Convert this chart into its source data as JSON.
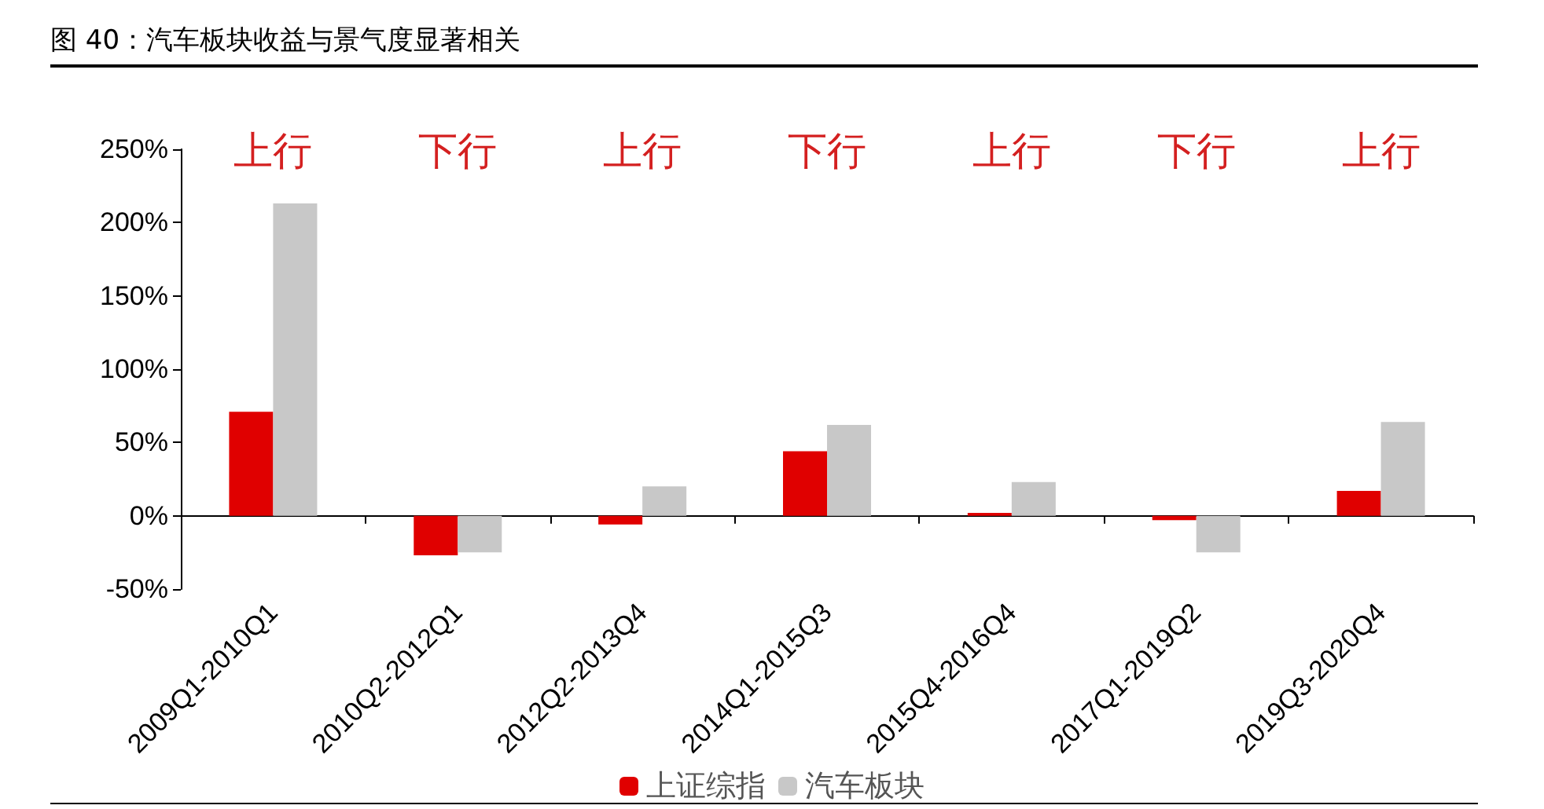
{
  "chart_data": {
    "type": "bar",
    "title": "图 40：汽车板块收益与景气度显著相关",
    "categories": [
      "2009Q1-2010Q1",
      "2010Q2-2012Q1",
      "2012Q2-2013Q4",
      "2014Q1-2015Q3",
      "2015Q4-2016Q4",
      "2017Q1-2019Q2",
      "2019Q3-2020Q4"
    ],
    "series": [
      {
        "name": "上证综指",
        "color": "#e00000",
        "values": [
          71,
          -27,
          -6,
          44,
          2,
          -3,
          17
        ]
      },
      {
        "name": "汽车板块",
        "color": "#c8c8c8",
        "values": [
          213,
          -25,
          20,
          62,
          23,
          -25,
          64
        ]
      }
    ],
    "ylim": [
      -50,
      250
    ],
    "yticks": [
      {
        "value": -50,
        "label": "-50%"
      },
      {
        "value": 0,
        "label": "0%"
      },
      {
        "value": 50,
        "label": "50%"
      },
      {
        "value": 100,
        "label": "100%"
      },
      {
        "value": 150,
        "label": "150%"
      },
      {
        "value": 200,
        "label": "200%"
      },
      {
        "value": 250,
        "label": "250%"
      }
    ],
    "annotations": [
      "上行",
      "下行",
      "上行",
      "下行",
      "上行",
      "下行",
      "上行"
    ],
    "legend": "bottom"
  }
}
